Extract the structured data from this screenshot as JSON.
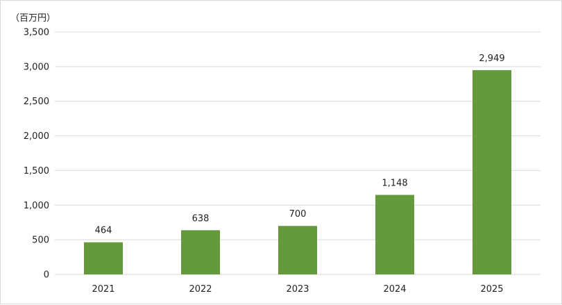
{
  "chart_data": {
    "type": "bar",
    "title": "",
    "unit_label": "（百万円）",
    "xlabel": "",
    "ylabel": "",
    "categories": [
      "2021",
      "2022",
      "2023",
      "2024",
      "2025"
    ],
    "values": [
      464,
      638,
      700,
      1148,
      2949
    ],
    "value_labels": [
      "464",
      "638",
      "700",
      "1,148",
      "2,949"
    ],
    "ylim": [
      0,
      3500
    ],
    "yticks": [
      0,
      500,
      1000,
      1500,
      2000,
      2500,
      3000,
      3500
    ],
    "ytick_labels": [
      "0",
      "500",
      "1,000",
      "1,500",
      "2,000",
      "2,500",
      "3,000",
      "3,500"
    ],
    "grid": true,
    "legend": "none",
    "colors": {
      "bar": "#64993c",
      "grid": "#d9d9d9",
      "text": "#222222"
    }
  }
}
